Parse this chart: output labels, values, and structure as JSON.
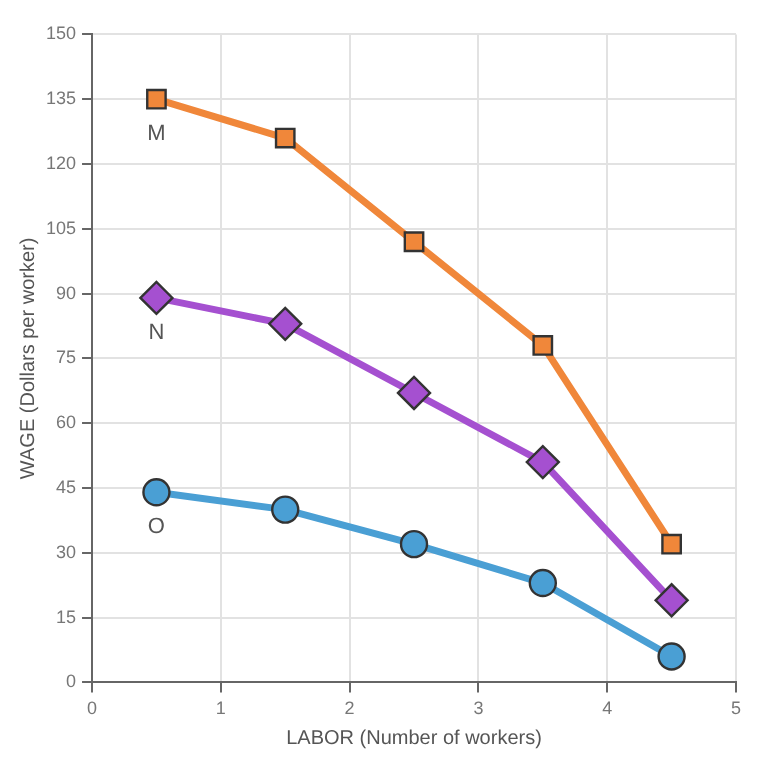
{
  "chart_data": {
    "type": "line",
    "xlabel": "LABOR (Number of workers)",
    "ylabel": "WAGE (Dollars per worker)",
    "xlim": [
      0,
      5
    ],
    "xticks": [
      0,
      1,
      2,
      3,
      4,
      5
    ],
    "ylim": [
      0,
      150
    ],
    "yticks": [
      0,
      15,
      30,
      45,
      60,
      75,
      90,
      105,
      120,
      135,
      150
    ],
    "grid": true,
    "legend": false,
    "series": [
      {
        "name": "M",
        "color": "#f0873a",
        "marker": "square",
        "x": [
          0.5,
          1.5,
          2.5,
          3.5,
          4.5
        ],
        "values": [
          135,
          126,
          102,
          78,
          32
        ]
      },
      {
        "name": "N",
        "color": "#a550d0",
        "marker": "diamond",
        "x": [
          0.5,
          1.5,
          2.5,
          3.5,
          4.5
        ],
        "values": [
          89,
          83,
          67,
          51,
          19
        ]
      },
      {
        "name": "O",
        "color": "#4a9fd4",
        "marker": "circle",
        "x": [
          0.5,
          1.5,
          2.5,
          3.5,
          4.5
        ],
        "values": [
          44,
          40,
          32,
          23,
          6
        ]
      }
    ]
  }
}
